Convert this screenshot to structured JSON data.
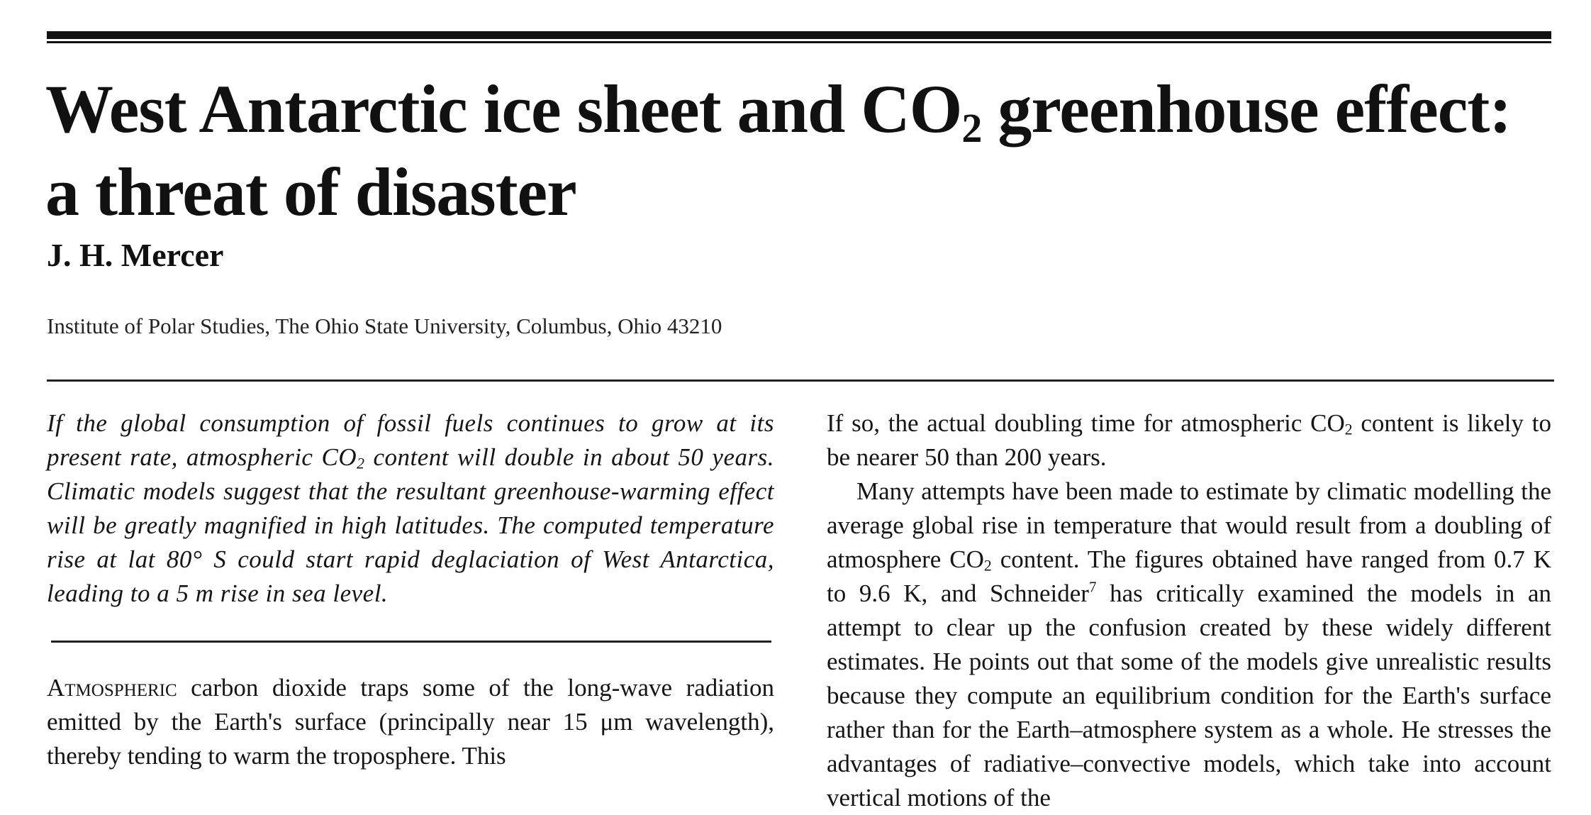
{
  "article": {
    "title_pre": "West Antarctic ice sheet and CO",
    "title_sub": "2",
    "title_post": " greenhouse effect: a threat of disaster",
    "author": "J. H. Mercer",
    "affiliation": "Institute of Polar Studies, The Ohio State University, Columbus, Ohio 43210"
  },
  "abstract": {
    "part1": "If the global consumption of fossil fuels continues to grow at its present rate, atmospheric CO",
    "sub": "2",
    "part2": " content will double in about 50 years. Climatic models suggest that the resultant greenhouse-warming effect will be greatly magnified in high latitudes. The computed temperature rise at lat 80° S could start rapid deglaciation of West Antarctica, leading to a 5 m rise in sea level."
  },
  "body_left": {
    "lead_smallcaps": "Atmospheric",
    "text": " carbon dioxide traps some of the long-wave radiation emitted by the Earth's surface (principally near 15 μm wavelength), thereby tending to warm the troposphere. This"
  },
  "body_right": {
    "p1_part1": "If so, the actual doubling time for atmospheric CO",
    "p1_sub": "2",
    "p1_part2": " content is likely to be nearer 50 than 200 years.",
    "p2_part1": "Many attempts have been made to estimate by climatic modelling the average global rise in temperature that would result from a doubling of atmosphere CO",
    "p2_sub": "2",
    "p2_part2": " content. The figures obtained have ranged from 0.7 K to 9.6 K, and Schneider",
    "p2_ref": "7",
    "p2_part3": " has critically examined the models in an attempt to clear up the confusion created by these widely different estimates. He points out that some of the models give unrealistic results because they compute an equilibrium condition for the Earth's surface rather than for the Earth–atmosphere system as a whole. He stresses the advantages of radiative–convective models, which take into account vertical motions of the"
  }
}
